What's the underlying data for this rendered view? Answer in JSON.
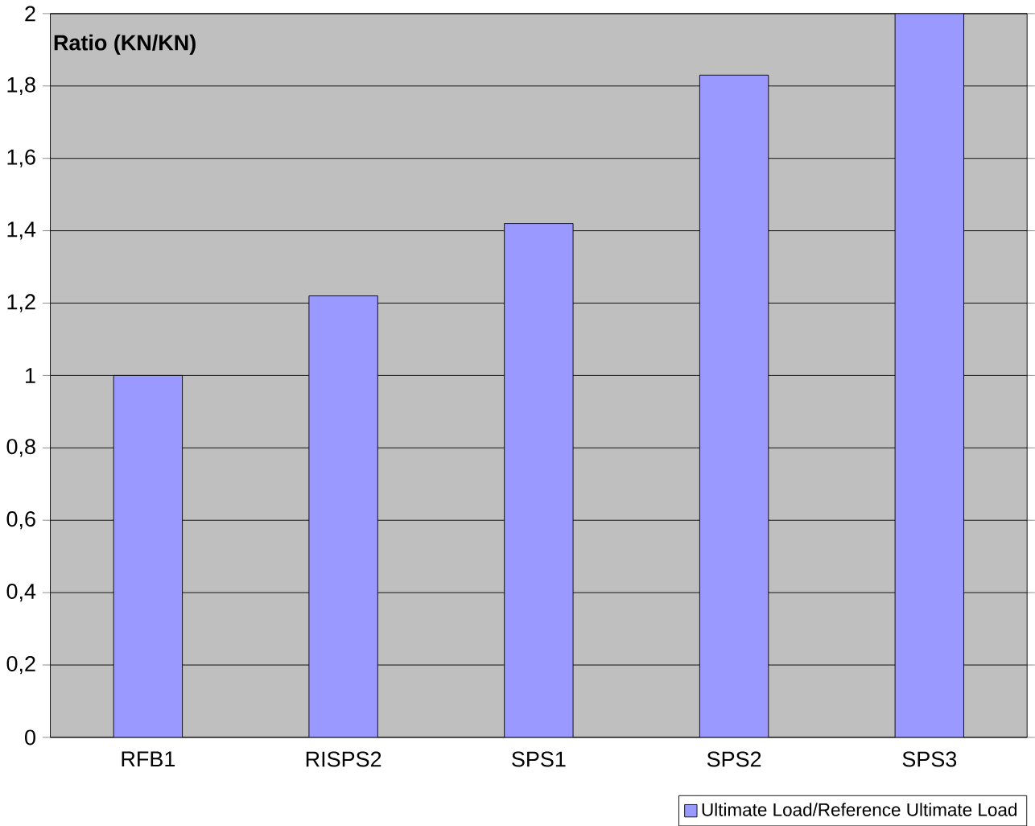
{
  "chart_data": {
    "type": "bar",
    "ylabel": "Ratio (KN/KN)",
    "categories": [
      "RFB1",
      "RISPS2",
      "SPS1",
      "SPS2",
      "SPS3"
    ],
    "series": [
      {
        "name": "Ultimate Load/Reference Ultimate Load",
        "color": "#9999ff",
        "values": [
          1.0,
          1.22,
          1.42,
          1.83,
          2.0
        ]
      }
    ],
    "ylim": [
      0,
      2
    ],
    "yticks": [
      0,
      {
        "value": 0.2,
        "label": "0,2"
      },
      {
        "value": 0.4,
        "label": "0,4"
      },
      {
        "value": 0.6,
        "label": "0,6"
      },
      {
        "value": 0.8,
        "label": "0,8"
      },
      1,
      {
        "value": 1.2,
        "label": "1,2"
      },
      {
        "value": 1.4,
        "label": "1,4"
      },
      {
        "value": 1.6,
        "label": "1,6"
      },
      {
        "value": 1.8,
        "label": "1,8"
      },
      2
    ],
    "grid": "y",
    "legend": "bottom right"
  }
}
